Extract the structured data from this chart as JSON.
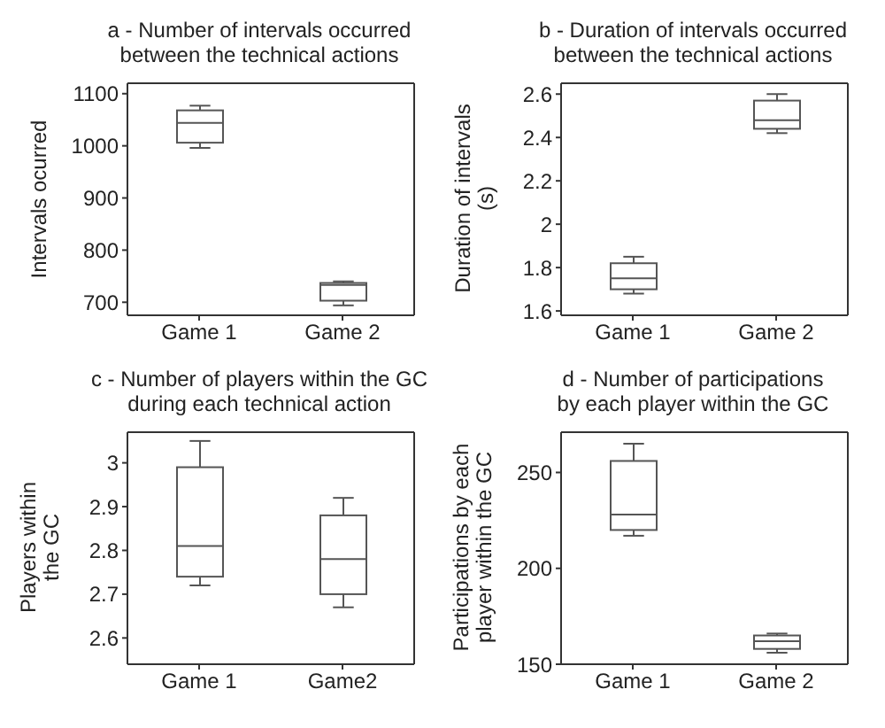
{
  "chart_data": [
    {
      "type": "box",
      "title": "a - Number of intervals occurred\nbetween the technical actions",
      "ylabel": "Intervals ocurred",
      "categories": [
        "Game 1",
        "Game 2"
      ],
      "boxes": [
        {
          "low": 996,
          "q1": 1006,
          "median": 1044,
          "q3": 1068,
          "high": 1077
        },
        {
          "low": 694,
          "q1": 703,
          "median": 733,
          "q3": 737,
          "high": 740
        }
      ],
      "ylim": [
        675,
        1120
      ],
      "yticks": [
        700,
        800,
        900,
        1000,
        1100
      ],
      "grid": false
    },
    {
      "type": "box",
      "title": "b - Duration of intervals occurred\nbetween the technical actions",
      "ylabel": "Duration of intervals\n(s)",
      "categories": [
        "Game 1",
        "Game 2"
      ],
      "boxes": [
        {
          "low": 1.68,
          "q1": 1.7,
          "median": 1.75,
          "q3": 1.82,
          "high": 1.85
        },
        {
          "low": 2.42,
          "q1": 2.44,
          "median": 2.48,
          "q3": 2.57,
          "high": 2.6
        }
      ],
      "ylim": [
        1.58,
        2.65
      ],
      "yticks": [
        1.6,
        1.8,
        2,
        2.2,
        2.4,
        2.6
      ],
      "grid": false
    },
    {
      "type": "box",
      "title": "c - Number of players within the GC\nduring each technical action",
      "ylabel": "Players within\nthe GC",
      "categories": [
        "Game 1",
        "Game2"
      ],
      "boxes": [
        {
          "low": 2.72,
          "q1": 2.74,
          "median": 2.81,
          "q3": 2.99,
          "high": 3.05
        },
        {
          "low": 2.67,
          "q1": 2.7,
          "median": 2.78,
          "q3": 2.88,
          "high": 2.92
        }
      ],
      "ylim": [
        2.54,
        3.07
      ],
      "yticks": [
        2.6,
        2.7,
        2.8,
        2.9,
        3
      ],
      "grid": false
    },
    {
      "type": "box",
      "title": "d - Number of participations\nby each player within the GC",
      "ylabel": "Participations by each\nplayer within the GC",
      "categories": [
        "Game 1",
        "Game 2"
      ],
      "boxes": [
        {
          "low": 217,
          "q1": 220,
          "median": 228,
          "q3": 256,
          "high": 265
        },
        {
          "low": 156,
          "q1": 158,
          "median": 162,
          "q3": 165,
          "high": 166
        }
      ],
      "ylim": [
        150,
        271
      ],
      "yticks": [
        150,
        200,
        250
      ],
      "grid": false
    }
  ]
}
